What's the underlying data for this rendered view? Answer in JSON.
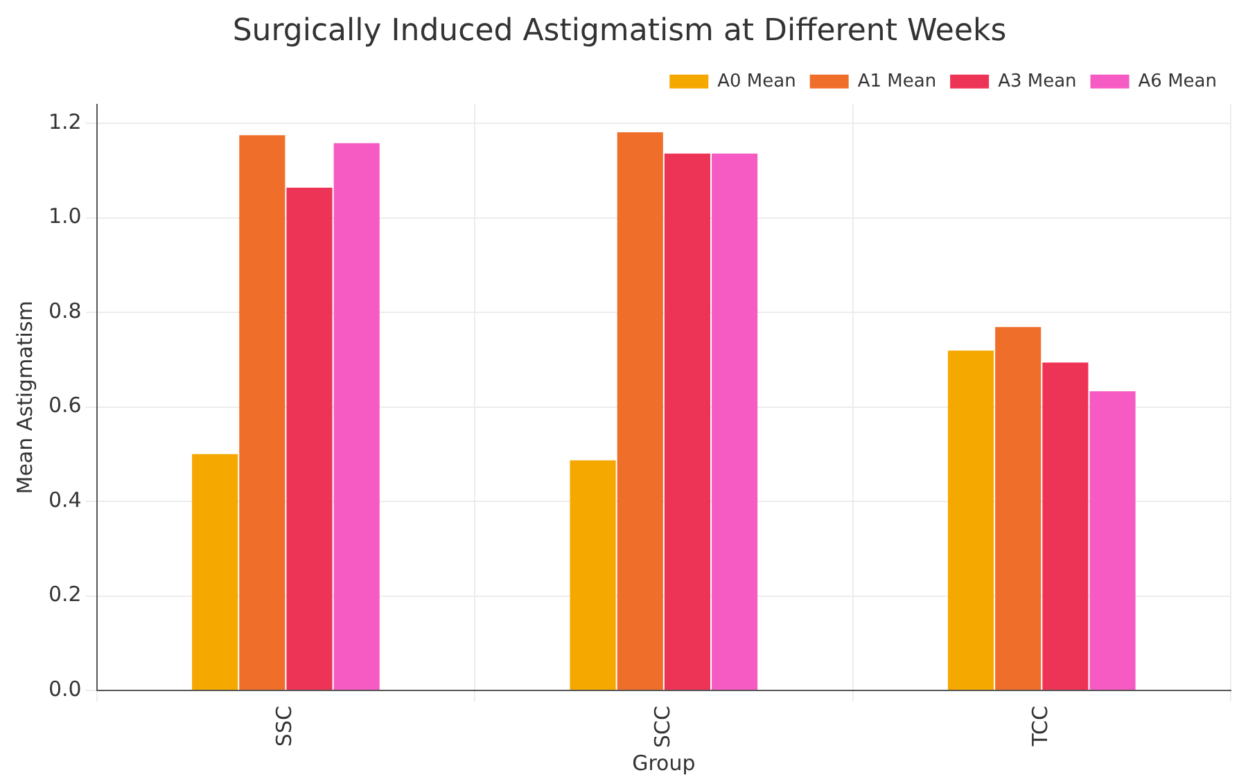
{
  "chart_data": {
    "type": "bar",
    "title": "Surgically Induced Astigmatism at Different Weeks",
    "xlabel": "Group",
    "ylabel": "Mean Astigmatism",
    "categories": [
      "SSC",
      "SCC",
      "TCC"
    ],
    "series": [
      {
        "name": "A0 Mean",
        "color": "#f5a800",
        "values": [
          0.5,
          0.487,
          0.719
        ]
      },
      {
        "name": "A1 Mean",
        "color": "#ef6f2a",
        "values": [
          1.175,
          1.181,
          0.769
        ]
      },
      {
        "name": "A3 Mean",
        "color": "#ee3456",
        "values": [
          1.064,
          1.136,
          0.694
        ]
      },
      {
        "name": "A6 Mean",
        "color": "#f55bc2",
        "values": [
          1.158,
          1.136,
          0.633
        ]
      }
    ],
    "ylim": [
      0,
      1.24
    ],
    "yticks": [
      {
        "value": 0,
        "label": "0.0"
      },
      {
        "value": 0.2,
        "label": "0.2"
      },
      {
        "value": 0.4,
        "label": "0.4"
      },
      {
        "value": 0.6,
        "label": "0.6"
      },
      {
        "value": 0.8,
        "label": "0.8"
      },
      {
        "value": 1,
        "label": "1.0"
      },
      {
        "value": 1.2,
        "label": "1.2"
      }
    ],
    "grid": true,
    "legend": "top right"
  }
}
